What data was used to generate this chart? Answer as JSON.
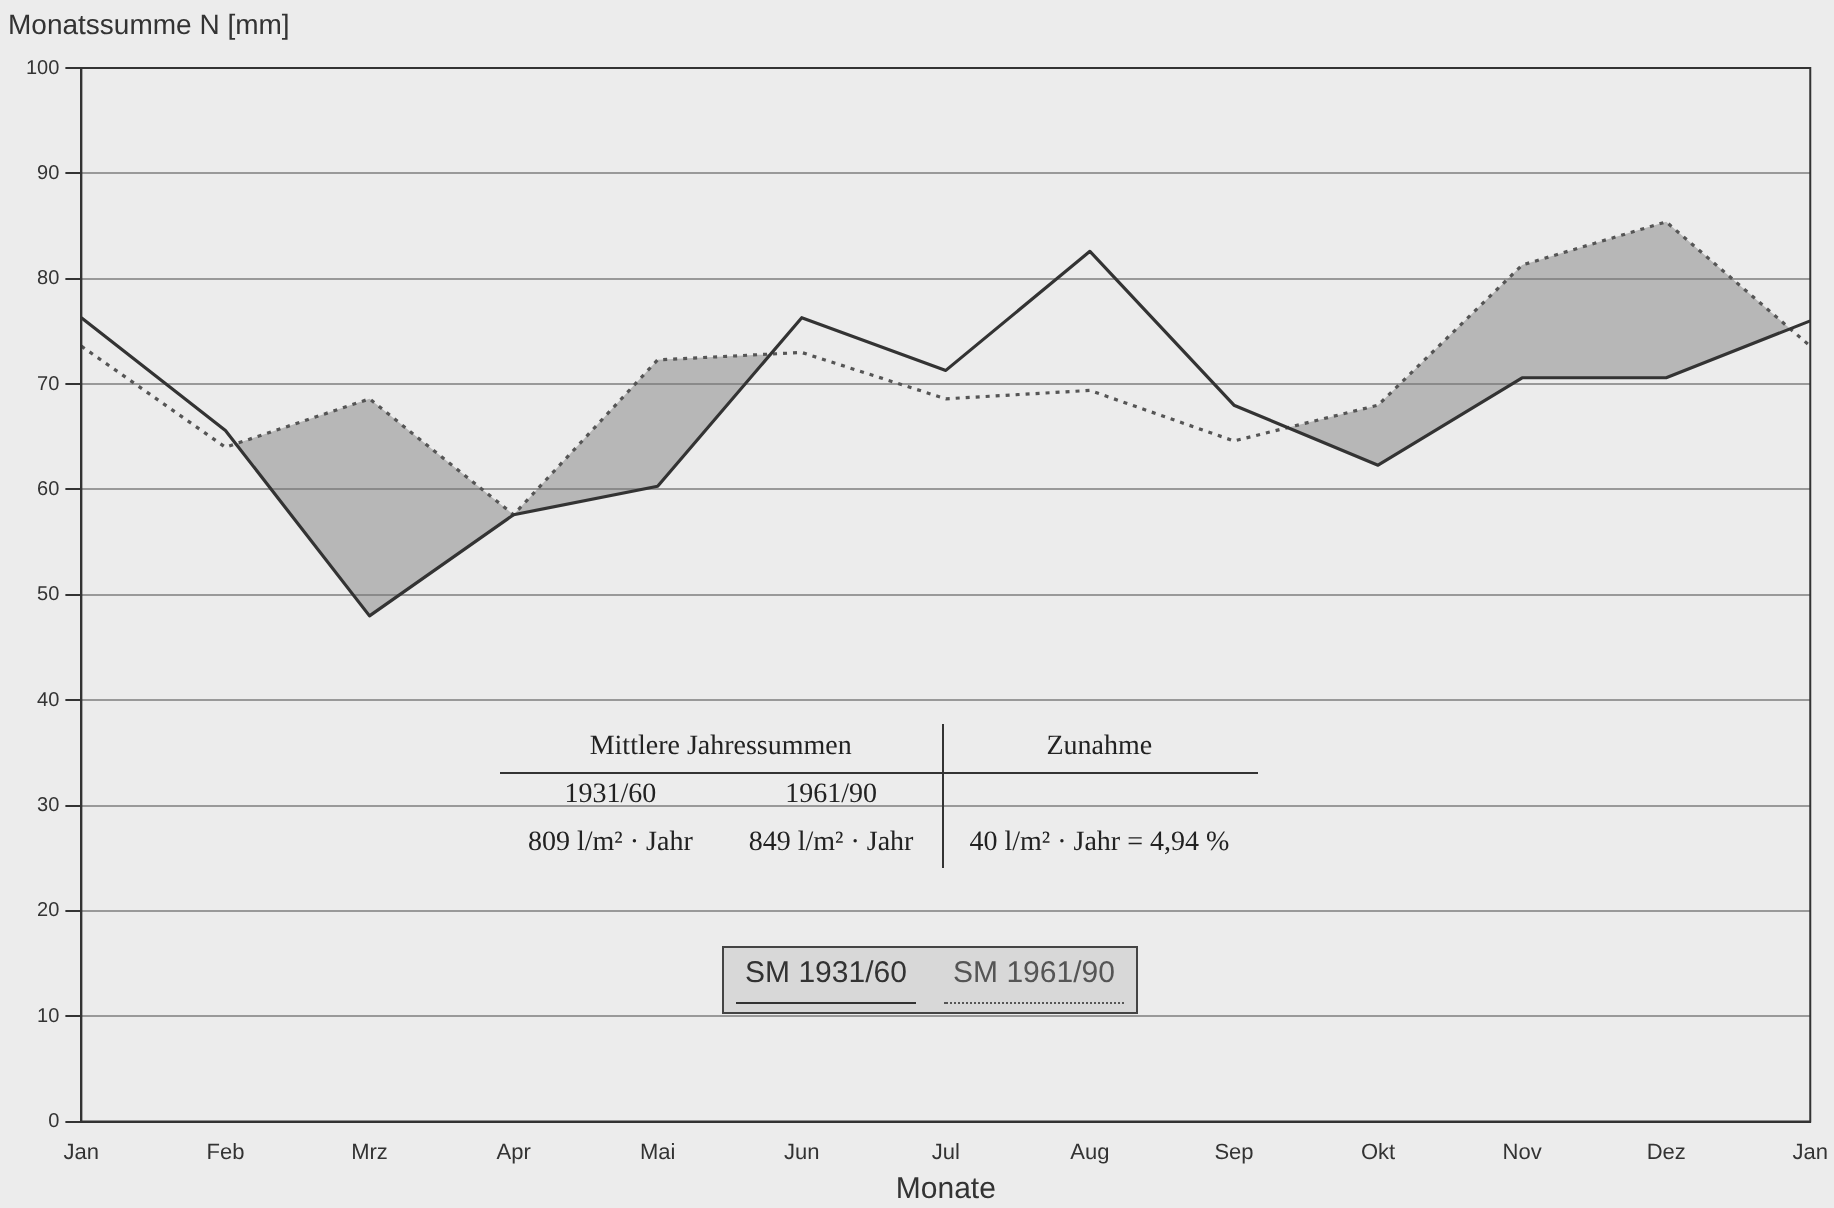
{
  "chart_data": {
    "type": "line",
    "xlabel": "Monate",
    "ylabel": "Monatssumme N [mm]",
    "categories": [
      "Jan",
      "Feb",
      "Mrz",
      "Apr",
      "Mai",
      "Jun",
      "Jul",
      "Aug",
      "Sep",
      "Okt",
      "Nov",
      "Dez",
      "Jan"
    ],
    "series": [
      {
        "name": "SM 1931/60",
        "color": "#333333",
        "line_style": "solid",
        "values": [
          76.3,
          65.6,
          48,
          57.6,
          60.3,
          76.3,
          71.3,
          82.6,
          68,
          62.3,
          70.6,
          70.6,
          76
        ]
      },
      {
        "name": "SM 1961/90",
        "color": "#555555",
        "line_style": "dotted",
        "values": [
          73.6,
          64,
          68.6,
          57.6,
          72.3,
          73,
          68.6,
          69.4,
          64.6,
          68,
          81.3,
          85.4,
          73.6
        ],
        "lower": [
          76.3,
          65.6,
          48,
          57.6,
          60.3,
          76.3,
          71.3,
          82.6,
          68,
          62.3,
          70.6,
          70.6,
          76
        ],
        "upper": [
          73.6,
          64,
          68.6,
          57.6,
          72.3,
          73,
          68.6,
          69.4,
          64.6,
          68,
          81.3,
          85.4,
          73.6
        ]
      }
    ],
    "ylim": [
      0,
      100
    ],
    "yticks": [
      0,
      10,
      20,
      30,
      40,
      50,
      60,
      70,
      80,
      90,
      100
    ],
    "grid": "y",
    "legend": "bottom",
    "marker": "none",
    "annotations": [
      "Mittlere Jahressummen",
      "1931/60",
      "1961/90",
      "809 l/m² · Jahr",
      "849 l/m² · Jahr",
      "Zunahme",
      "40 l/m² · Jahr = 4,94 %"
    ]
  }
}
